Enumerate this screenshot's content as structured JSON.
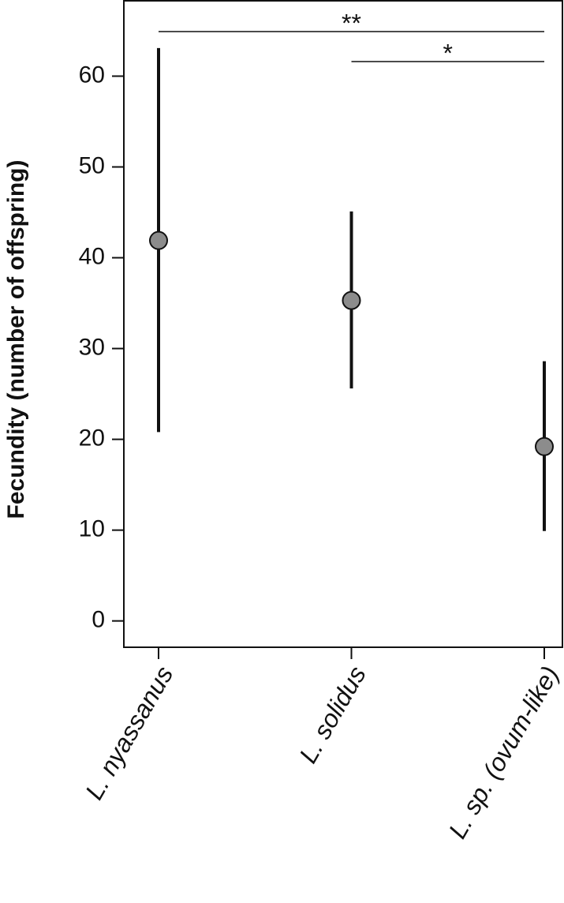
{
  "chart_data": {
    "type": "pointrange",
    "y_label": "Fecundity (number of offspring)",
    "categories": [
      "L. nyassanus",
      "L. solidus",
      "L. sp. (ovum-like)"
    ],
    "series": [
      {
        "color": "#8c8c8c",
        "values": [
          41.9,
          35.3,
          19.2
        ],
        "lower": [
          20.8,
          25.6,
          9.9
        ],
        "upper": [
          63.1,
          45.1,
          28.6
        ]
      }
    ],
    "ylim": [
      -2.9,
      68.3
    ],
    "yticks": [
      0,
      10,
      20,
      30,
      40,
      50,
      60
    ],
    "annotations": [
      {
        "text": "**",
        "categories": [
          0,
          2
        ]
      },
      {
        "text": "*",
        "categories": [
          1,
          2
        ]
      }
    ]
  }
}
